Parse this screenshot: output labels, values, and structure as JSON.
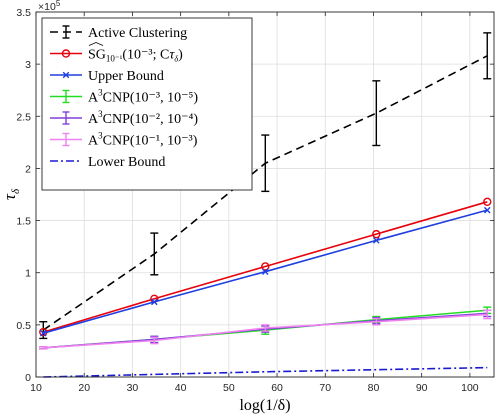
{
  "chart_data": {
    "type": "line",
    "xlabel": "log(1/δ)",
    "ylabel_main": "τ",
    "ylabel_sub": "δ",
    "y_multiplier_base": "×10",
    "y_multiplier_exp": "5",
    "xlim": [
      10,
      105
    ],
    "ylim": [
      0,
      3.5
    ],
    "xticks": [
      10,
      20,
      30,
      40,
      50,
      60,
      70,
      80,
      90,
      100
    ],
    "yticks": [
      0,
      0.5,
      1,
      1.5,
      2,
      2.5,
      3,
      3.5
    ],
    "ytick_labels": [
      "0",
      "0.5",
      "1",
      "1.5",
      "2",
      "2.5",
      "3",
      "3.5"
    ],
    "grid": true,
    "legend_position": "top-left",
    "x": [
      11.51,
      34.54,
      57.56,
      80.59,
      103.6
    ],
    "series": [
      {
        "name": "Active Clustering",
        "color": "#000000",
        "dash": "8,5",
        "marker": "none",
        "values": [
          0.45,
          1.18,
          2.05,
          2.53,
          3.08
        ],
        "errors": [
          0.08,
          0.2,
          0.27,
          0.31,
          0.22
        ]
      },
      {
        "name_parts": [
          "SG",
          "10⁻¹",
          "(10⁻³; C",
          "τ",
          "δ",
          ")"
        ],
        "color": "#e8000b",
        "dash": "",
        "marker": "circle",
        "values": [
          0.43,
          0.75,
          1.06,
          1.37,
          1.68
        ]
      },
      {
        "name": "Upper Bound",
        "color": "#1f3fe0",
        "dash": "",
        "marker": "x",
        "values": [
          0.42,
          0.72,
          1.01,
          1.31,
          1.6
        ]
      },
      {
        "name_parts": [
          "A",
          "3",
          "CNP(10⁻³, 10⁻⁵)"
        ],
        "color": "#22dd22",
        "dash": "",
        "marker": "none",
        "values": [
          0.28,
          0.36,
          0.45,
          0.55,
          0.64
        ],
        "errors": [
          0.01,
          0.03,
          0.04,
          0.03,
          0.03
        ]
      },
      {
        "name_parts": [
          "A",
          "3",
          "CNP(10⁻², 10⁻⁴)"
        ],
        "color": "#7e3fdc",
        "dash": "",
        "marker": "none",
        "values": [
          0.28,
          0.36,
          0.46,
          0.54,
          0.61
        ],
        "errors": [
          0.01,
          0.03,
          0.03,
          0.03,
          0.03
        ]
      },
      {
        "name_parts": [
          "A",
          "3",
          "CNP(10⁻¹, 10⁻³)"
        ],
        "color": "#f082f0",
        "dash": "",
        "marker": "none",
        "values": [
          0.28,
          0.35,
          0.47,
          0.53,
          0.6
        ],
        "errors": [
          0.01,
          0.03,
          0.03,
          0.03,
          0.04
        ]
      },
      {
        "name": "Lower Bound",
        "color": "#1a1ad0",
        "dash": "8,3,2,3",
        "marker": "none",
        "values": [
          0.0,
          0.025,
          0.05,
          0.07,
          0.09
        ]
      }
    ]
  }
}
